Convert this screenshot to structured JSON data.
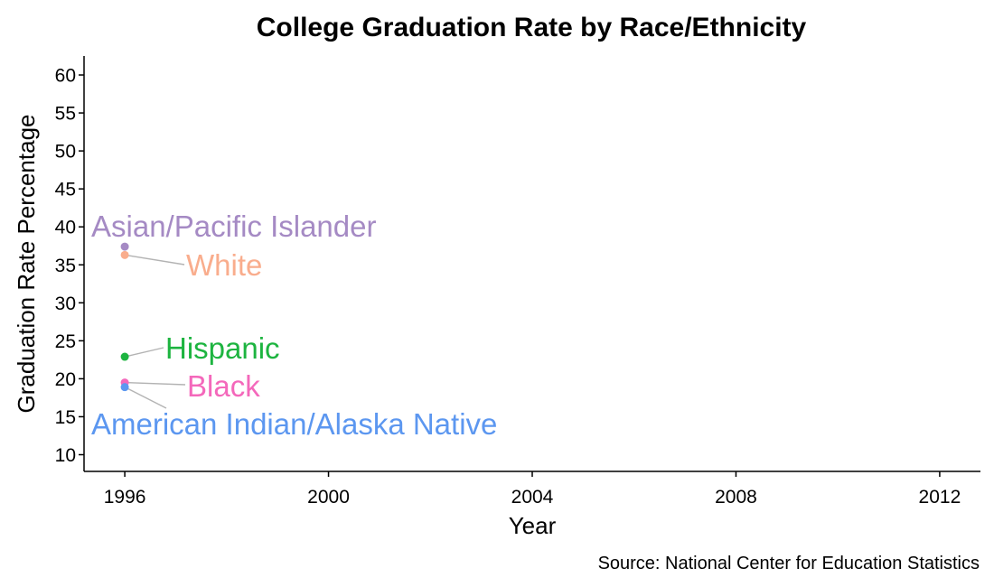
{
  "chart_data": {
    "type": "scatter",
    "title": "College Graduation Rate by Race/Ethnicity",
    "xlabel": "Year",
    "ylabel": "Graduation Rate Percentage",
    "caption": "Source: National Center for Education Statistics",
    "xlim": [
      1995.2,
      2012.8
    ],
    "ylim": [
      7.8,
      62.5
    ],
    "xticks": [
      1996,
      2000,
      2004,
      2008,
      2012
    ],
    "yticks": [
      10,
      15,
      20,
      25,
      30,
      35,
      40,
      45,
      50,
      55,
      60
    ],
    "grid": false,
    "legend": "none (direct labels)",
    "series": [
      {
        "name": "Asian/Pacific Islander",
        "color": "#A58AC4",
        "points": [
          {
            "x": 1996,
            "y": 37.4
          }
        ]
      },
      {
        "name": "White",
        "color": "#F9AD8D",
        "points": [
          {
            "x": 1996,
            "y": 36.3
          }
        ]
      },
      {
        "name": "Hispanic",
        "color": "#1DB440",
        "points": [
          {
            "x": 1996,
            "y": 22.9
          }
        ]
      },
      {
        "name": "Black",
        "color": "#F468BB",
        "points": [
          {
            "x": 1996,
            "y": 19.5
          }
        ]
      },
      {
        "name": "American Indian/Alaska Native",
        "color": "#5C97F0",
        "points": [
          {
            "x": 1996,
            "y": 18.9
          }
        ]
      }
    ]
  }
}
